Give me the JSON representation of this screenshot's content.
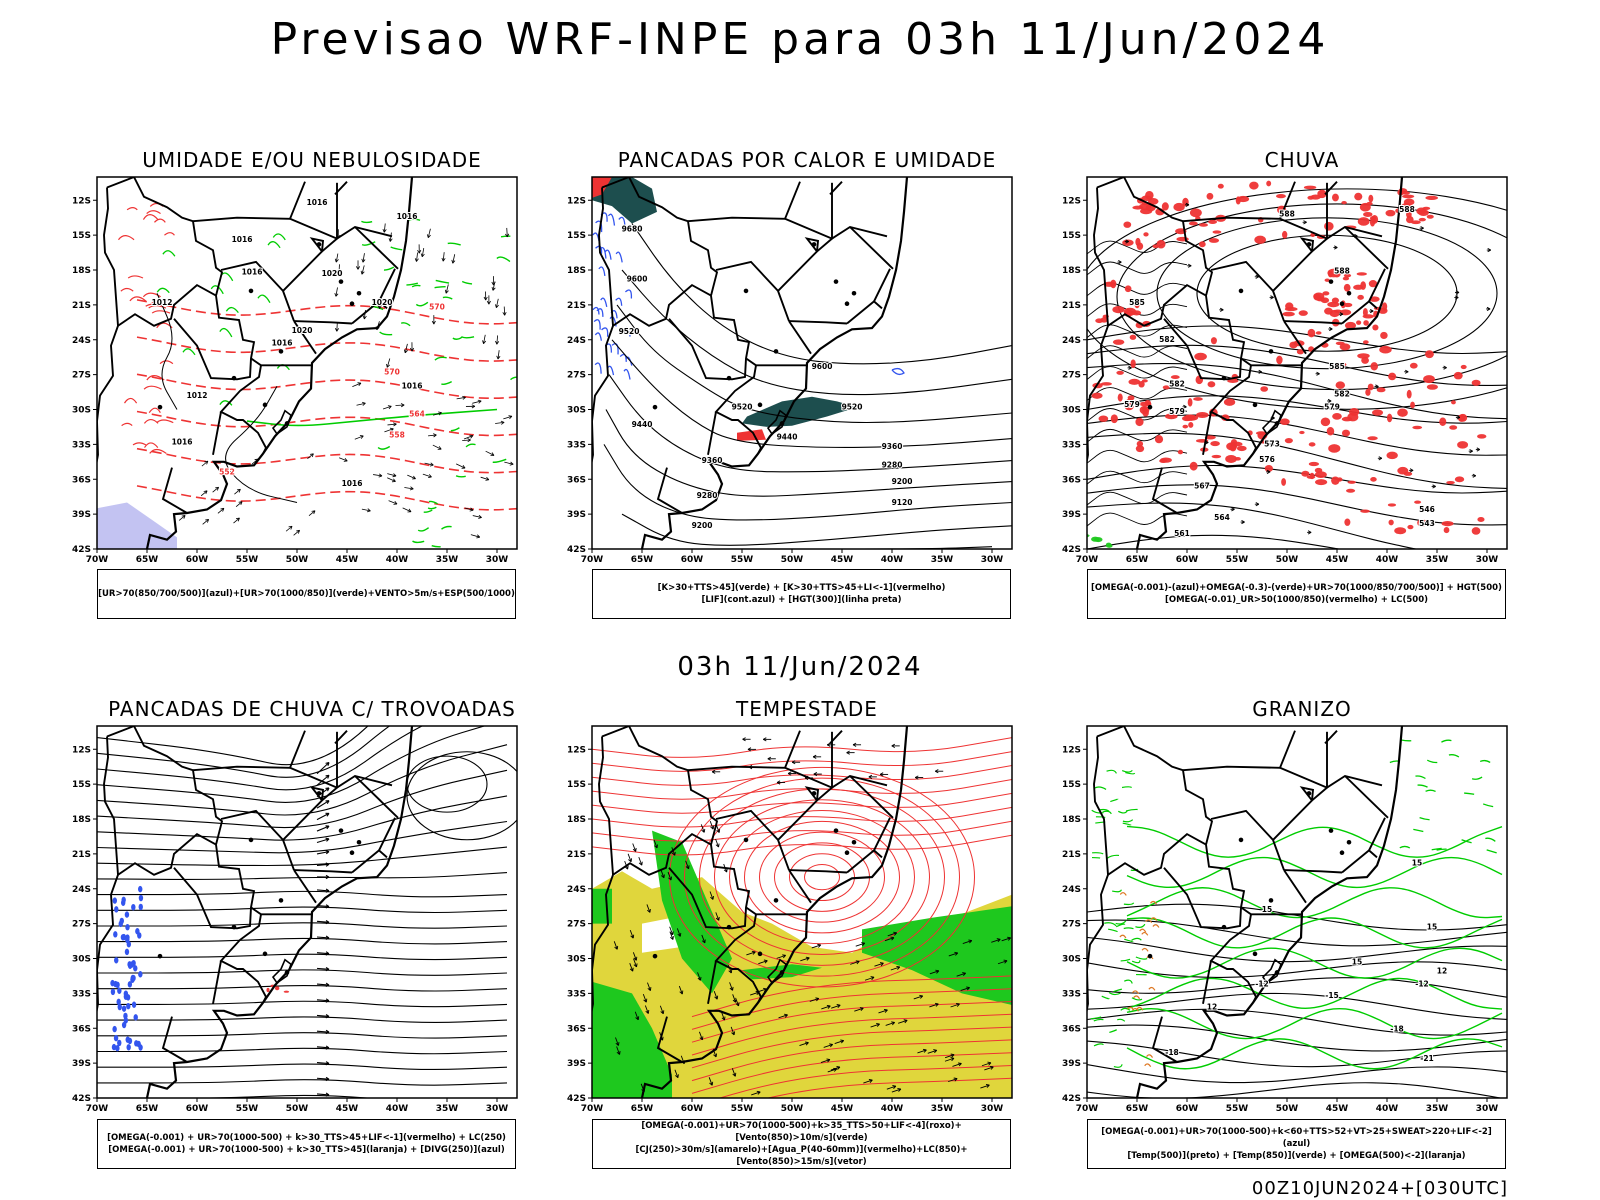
{
  "header": {
    "title": "Previsao WRF-INPE  para 03h 11/Jun/2024",
    "subtitle": "03h 11/Jun/2024",
    "footer": "00Z10JUN2024+[030UTC]"
  },
  "axes": {
    "lat_labels": [
      "12S",
      "15S",
      "18S",
      "21S",
      "24S",
      "27S",
      "30S",
      "33S",
      "36S",
      "39S",
      "42S"
    ],
    "lon_labels": [
      "70W",
      "65W",
      "60W",
      "55W",
      "50W",
      "45W",
      "40W",
      "35W",
      "30W"
    ]
  },
  "colors": {
    "rh_blue": "#3355ee",
    "rh_green": "#00cc00",
    "red": "#ee3333",
    "teal": "#1d4e4e",
    "yellow": "#e0d63c",
    "green": "#1ec81e",
    "orange": "#dd7722",
    "lavender": "#b8b8f0"
  },
  "panels": [
    {
      "id": "umidade",
      "title": "UMIDADE E/OU NEBULOSIDADE",
      "legend": [
        "[UR>70(850/700/500)](azul)+[UR>70(1000/850)](verde)+VENTO>5m/s+ESP(500/1000)"
      ],
      "labels": [
        {
          "t": "1016",
          "lon": -48.0,
          "lat": -12.4
        },
        {
          "t": "1016",
          "lon": -39.0,
          "lat": -13.6
        },
        {
          "t": "1016",
          "lon": -55.5,
          "lat": -15.6
        },
        {
          "t": "1016",
          "lon": -54.5,
          "lat": -18.4
        },
        {
          "t": "1020",
          "lon": -46.5,
          "lat": -18.5
        },
        {
          "t": "1020",
          "lon": -41.5,
          "lat": -21.0
        },
        {
          "t": "1012",
          "lon": -63.5,
          "lat": -21.0
        },
        {
          "t": "1016",
          "lon": -51.5,
          "lat": -24.5
        },
        {
          "t": "1020",
          "lon": -49.5,
          "lat": -23.4
        },
        {
          "t": "1012",
          "lon": -60.0,
          "lat": -29.0
        },
        {
          "t": "1016",
          "lon": -38.5,
          "lat": -28.2
        },
        {
          "t": "1016",
          "lon": -61.5,
          "lat": -33.0
        },
        {
          "t": "1016",
          "lon": -44.5,
          "lat": -36.6
        },
        {
          "t": "570",
          "lon": -36.0,
          "lat": -21.4
        },
        {
          "t": "570",
          "lon": -40.5,
          "lat": -27.0
        },
        {
          "t": "564",
          "lon": -38.0,
          "lat": -30.6
        },
        {
          "t": "558",
          "lon": -40.0,
          "lat": -32.4
        },
        {
          "t": "552",
          "lon": -57.0,
          "lat": -35.6
        }
      ]
    },
    {
      "id": "pancadas_calor",
      "title": "PANCADAS POR CALOR E UMIDADE",
      "legend": [
        "[K>30+TTS>45](verde) + [K>30+TTS>45+LI<-1](vermelho)",
        "[LIF](cont.azul) + [HGT(300)](linha preta)"
      ],
      "labels": [
        {
          "t": "9680",
          "lon": -66.0,
          "lat": -14.7
        },
        {
          "t": "9600",
          "lon": -65.5,
          "lat": -19.0
        },
        {
          "t": "9520",
          "lon": -66.3,
          "lat": -23.5
        },
        {
          "t": "9600",
          "lon": -47.0,
          "lat": -26.5
        },
        {
          "t": "9520",
          "lon": -55.0,
          "lat": -30.0
        },
        {
          "t": "9520",
          "lon": -44.0,
          "lat": -30.0
        },
        {
          "t": "9440",
          "lon": -65.0,
          "lat": -31.5
        },
        {
          "t": "9440",
          "lon": -50.5,
          "lat": -32.6
        },
        {
          "t": "9360",
          "lon": -40.0,
          "lat": -33.4
        },
        {
          "t": "9360",
          "lon": -58.0,
          "lat": -34.6
        },
        {
          "t": "9280",
          "lon": -40.0,
          "lat": -35.0
        },
        {
          "t": "9200",
          "lon": -39.0,
          "lat": -36.4
        },
        {
          "t": "9280",
          "lon": -58.5,
          "lat": -37.6
        },
        {
          "t": "9120",
          "lon": -39.0,
          "lat": -38.2
        },
        {
          "t": "9200",
          "lon": -59.0,
          "lat": -40.2
        }
      ]
    },
    {
      "id": "chuva",
      "title": "CHUVA",
      "legend": [
        "[OMEGA(-0.001)-(azul)+OMEGA(-0.3)-(verde)+UR>70(1000/850/700/500)] + HGT(500)",
        "[OMEGA(-0.01)_UR>50(1000/850)(vermelho) + LC(500)"
      ],
      "labels": [
        {
          "t": "588",
          "lon": -50.0,
          "lat": -13.4
        },
        {
          "t": "588",
          "lon": -38.0,
          "lat": -13.0
        },
        {
          "t": "588",
          "lon": -44.5,
          "lat": -18.3
        },
        {
          "t": "585",
          "lon": -65.0,
          "lat": -21.0
        },
        {
          "t": "582",
          "lon": -62.0,
          "lat": -24.2
        },
        {
          "t": "585",
          "lon": -45.0,
          "lat": -26.5
        },
        {
          "t": "582",
          "lon": -61.0,
          "lat": -28.0
        },
        {
          "t": "582",
          "lon": -44.5,
          "lat": -28.9
        },
        {
          "t": "579",
          "lon": -65.5,
          "lat": -29.8
        },
        {
          "t": "579",
          "lon": -61.0,
          "lat": -30.4
        },
        {
          "t": "579",
          "lon": -45.5,
          "lat": -30.0
        },
        {
          "t": "576",
          "lon": -52.0,
          "lat": -34.5
        },
        {
          "t": "573",
          "lon": -51.5,
          "lat": -33.2
        },
        {
          "t": "567",
          "lon": -58.5,
          "lat": -36.8
        },
        {
          "t": "564",
          "lon": -56.5,
          "lat": -39.5
        },
        {
          "t": "561",
          "lon": -60.5,
          "lat": -40.9
        },
        {
          "t": "546",
          "lon": -36.0,
          "lat": -38.8
        },
        {
          "t": "543",
          "lon": -36.0,
          "lat": -40.0
        }
      ]
    },
    {
      "id": "pancadas_trovoadas",
      "title": "PANCADAS DE CHUVA C/ TROVOADAS",
      "legend": [
        "[OMEGA(-0.001) + UR>70(1000-500) + k>30_TTS>45+LIF<-1](vermelho) + LC(250)",
        "[OMEGA(-0.001) + UR>70(1000-500) + k>30_TTS>45](laranja) + [DIVG(250)](azul)"
      ],
      "labels": []
    },
    {
      "id": "tempestade",
      "title": "TEMPESTADE",
      "legend": [
        "[OMEGA(-0.001)+UR>70(1000-500)+k>35_TTS>50+LIF<-4](roxo)+[Vento(850)>10m/s](verde)",
        "[CJ(250)>30m/s](amarelo)+[Agua_P(40-60mm)](vermelho)+LC(850)+[Vento(850)>15m/s](vetor)"
      ],
      "labels": []
    },
    {
      "id": "granizo",
      "title": "GRANIZO",
      "legend": [
        "[OMEGA(-0.001)+UR>70(1000-500)+k<60+TTS>52+VT>25+SWEAT>220+LIF<-2](azul)",
        "[Temp(500)](preto) + [Temp(850)](verde) + [OMEGA(500)<-2](laranja)"
      ],
      "labels": [
        {
          "t": "15",
          "lon": -37.0,
          "lat": -22.0
        },
        {
          "t": "15",
          "lon": -52.0,
          "lat": -26.0
        },
        {
          "t": "15",
          "lon": -35.5,
          "lat": -27.5
        },
        {
          "t": "15",
          "lon": -43.0,
          "lat": -30.5
        },
        {
          "t": "12",
          "lon": -34.5,
          "lat": -31.3
        },
        {
          "t": "-12",
          "lon": -36.5,
          "lat": -32.4
        },
        {
          "t": "-12",
          "lon": -52.5,
          "lat": -32.4
        },
        {
          "t": "-15",
          "lon": -45.5,
          "lat": -33.4
        },
        {
          "t": "12",
          "lon": -57.5,
          "lat": -34.4
        },
        {
          "t": "-18",
          "lon": -39.0,
          "lat": -36.3
        },
        {
          "t": "-18",
          "lon": -61.5,
          "lat": -38.3
        },
        {
          "t": "-21",
          "lon": -36.0,
          "lat": -38.8
        }
      ]
    }
  ]
}
